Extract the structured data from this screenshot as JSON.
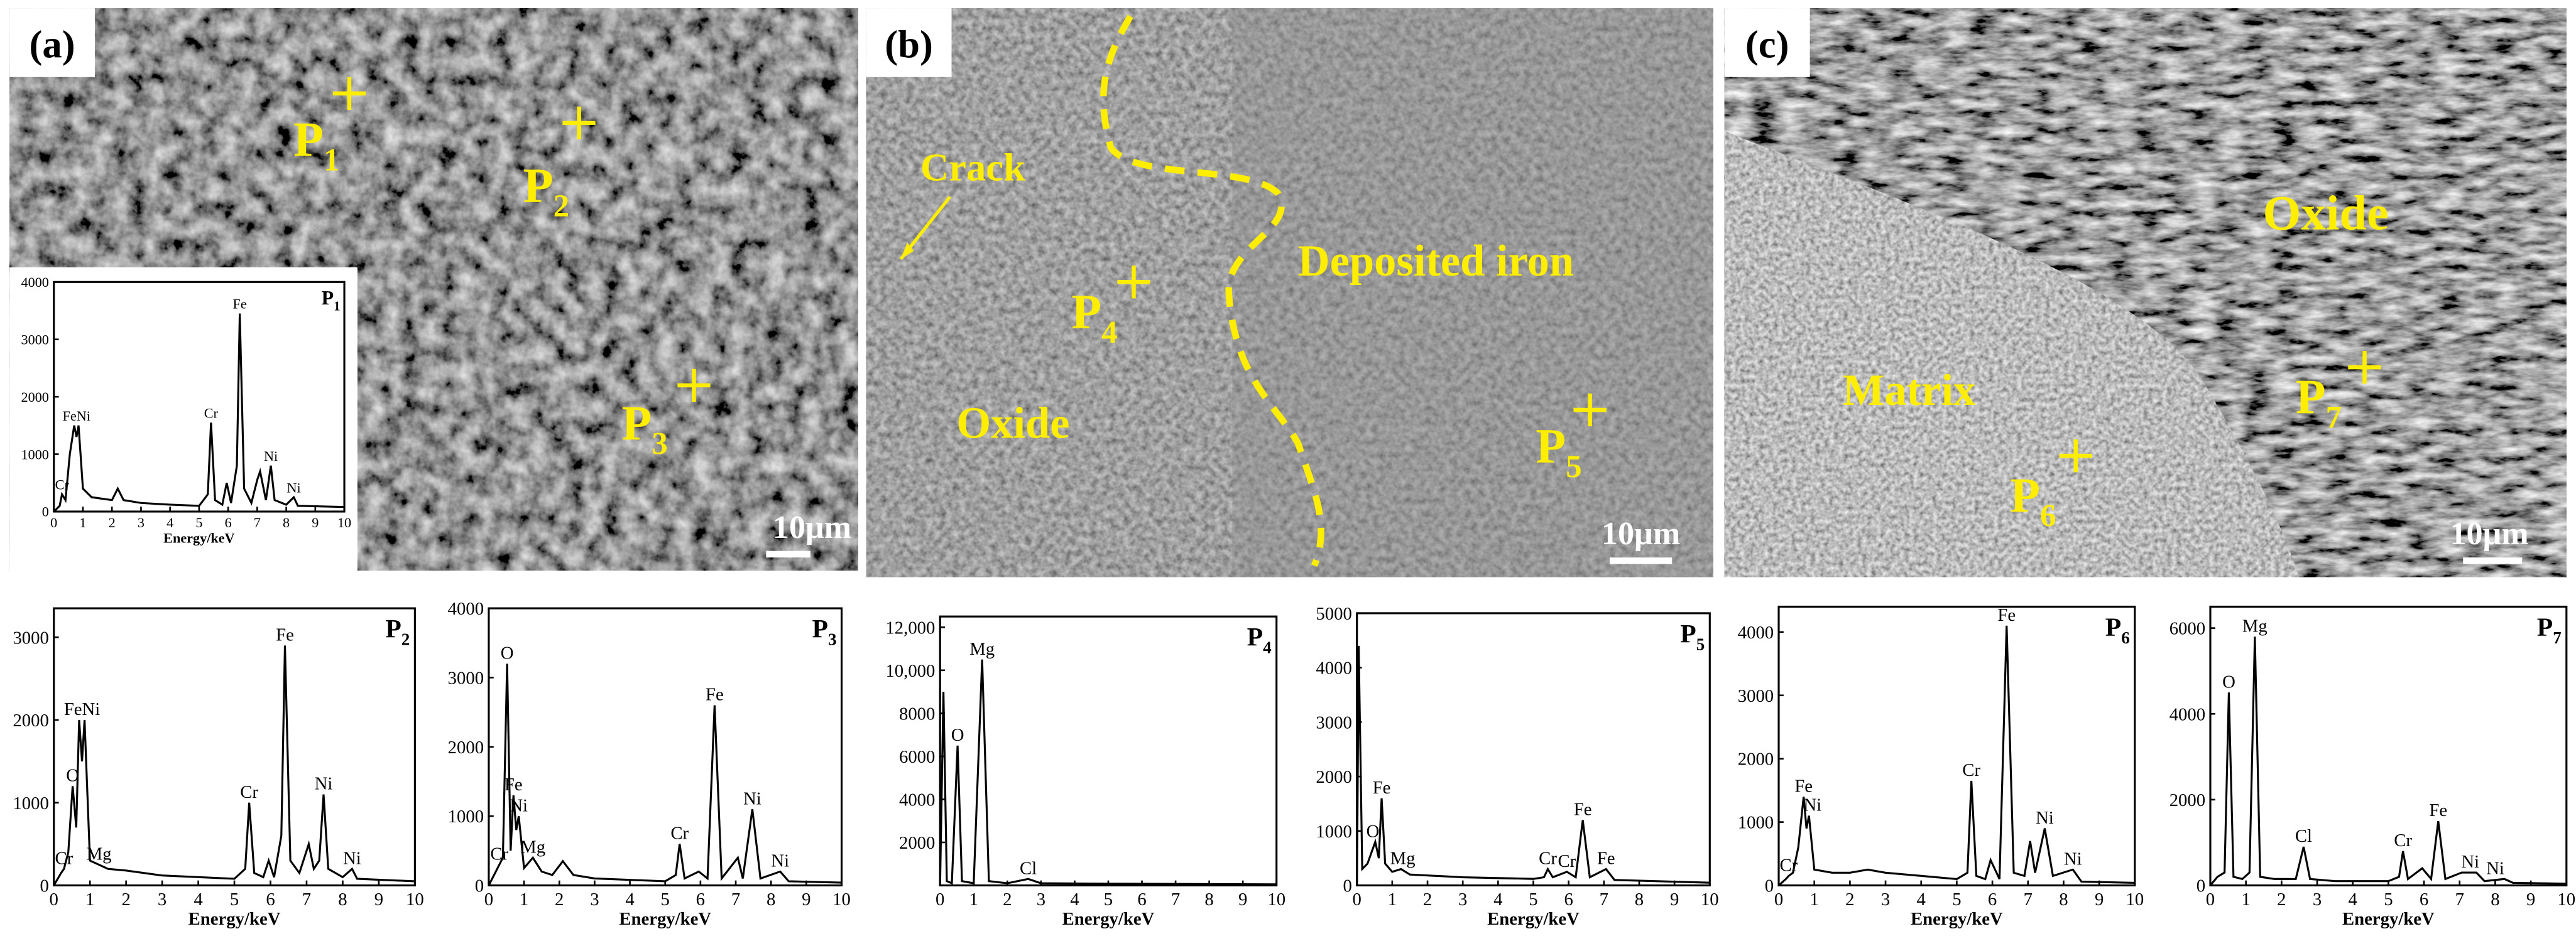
{
  "panels": [
    {
      "label": "(a)",
      "scale_bar": "10μm",
      "points": [
        {
          "name": "P",
          "sub": "1"
        },
        {
          "name": "P",
          "sub": "2"
        },
        {
          "name": "P",
          "sub": "3"
        }
      ],
      "labels": []
    },
    {
      "label": "(b)",
      "scale_bar": "10μm",
      "points": [
        {
          "name": "P",
          "sub": "4"
        },
        {
          "name": "P",
          "sub": "5"
        }
      ],
      "labels": [
        "Crack",
        "Deposited iron",
        "Oxide"
      ]
    },
    {
      "label": "(c)",
      "scale_bar": "10μm",
      "points": [
        {
          "name": "P",
          "sub": "6"
        },
        {
          "name": "P",
          "sub": "7"
        }
      ],
      "labels": [
        "Oxide",
        "Matrix"
      ]
    }
  ],
  "chart_data": [
    {
      "type": "line",
      "title": "P",
      "title_subscript": "1",
      "xlabel": "Energy/keV",
      "color": "#000000",
      "xlim": [
        0,
        10
      ],
      "xticks": [
        0,
        1,
        2,
        3,
        4,
        5,
        6,
        7,
        8,
        9,
        10
      ],
      "ylim": [
        0,
        4000
      ],
      "yticks": [
        0,
        1000,
        2000,
        3000,
        4000
      ],
      "x": [
        0,
        0.2,
        0.28,
        0.4,
        0.55,
        0.7,
        0.78,
        0.85,
        1.0,
        1.3,
        2.0,
        2.2,
        2.4,
        3,
        4,
        5,
        5.3,
        5.41,
        5.55,
        5.8,
        5.95,
        6.1,
        6.3,
        6.4,
        6.55,
        6.8,
        7.0,
        7.1,
        7.3,
        7.47,
        7.6,
        8.0,
        8.26,
        8.4,
        10
      ],
      "values": [
        0,
        100,
        300,
        200,
        1000,
        1500,
        1300,
        1500,
        400,
        250,
        200,
        400,
        200,
        150,
        120,
        100,
        300,
        1550,
        200,
        120,
        500,
        150,
        800,
        3450,
        400,
        150,
        550,
        700,
        200,
        800,
        200,
        120,
        250,
        100,
        80
      ],
      "annotations": [
        {
          "text": "Cr",
          "x": 0.28,
          "y": 300
        },
        {
          "text": "FeNi",
          "x": 0.78,
          "y": 1500
        },
        {
          "text": "Cr",
          "x": 5.41,
          "y": 1550
        },
        {
          "text": "Fe",
          "x": 6.4,
          "y": 3450
        },
        {
          "text": "Ni",
          "x": 7.47,
          "y": 800
        },
        {
          "text": "Ni",
          "x": 8.26,
          "y": 250
        }
      ]
    },
    {
      "type": "line",
      "title": "P",
      "title_subscript": "2",
      "xlabel": "Energy/keV",
      "color": "#000000",
      "xlim": [
        0,
        10
      ],
      "xticks": [
        0,
        1,
        2,
        3,
        4,
        5,
        6,
        7,
        8,
        9,
        10
      ],
      "ylim": [
        0,
        3350
      ],
      "yticks": [
        0,
        1000,
        2000,
        3000
      ],
      "x": [
        0,
        0.2,
        0.28,
        0.4,
        0.52,
        0.62,
        0.7,
        0.78,
        0.85,
        1.0,
        1.25,
        1.5,
        2,
        3,
        4,
        5,
        5.3,
        5.41,
        5.55,
        5.8,
        5.95,
        6.1,
        6.3,
        6.4,
        6.55,
        6.8,
        7.06,
        7.2,
        7.35,
        7.47,
        7.6,
        8.0,
        8.26,
        8.4,
        10
      ],
      "values": [
        0,
        150,
        200,
        400,
        1200,
        700,
        2000,
        1500,
        2000,
        300,
        250,
        200,
        180,
        120,
        100,
        80,
        200,
        1000,
        150,
        100,
        300,
        100,
        600,
        2900,
        300,
        150,
        500,
        200,
        300,
        1100,
        200,
        100,
        200,
        80,
        50
      ],
      "annotations": [
        {
          "text": "Cr",
          "x": 0.28,
          "y": 200
        },
        {
          "text": "O",
          "x": 0.52,
          "y": 1200
        },
        {
          "text": "FeNi",
          "x": 0.78,
          "y": 2000
        },
        {
          "text": "Mg",
          "x": 1.25,
          "y": 250
        },
        {
          "text": "Cr",
          "x": 5.41,
          "y": 1000
        },
        {
          "text": "Fe",
          "x": 6.4,
          "y": 2900
        },
        {
          "text": "Ni",
          "x": 7.47,
          "y": 1100
        },
        {
          "text": "Ni",
          "x": 8.26,
          "y": 200
        }
      ]
    },
    {
      "type": "line",
      "title": "P",
      "title_subscript": "3",
      "xlabel": "Energy/keV",
      "color": "#000000",
      "xlim": [
        0,
        10
      ],
      "xticks": [
        0,
        1,
        2,
        3,
        4,
        5,
        6,
        7,
        8,
        9,
        10
      ],
      "ylim": [
        0,
        4000
      ],
      "yticks": [
        0,
        1000,
        2000,
        3000,
        4000
      ],
      "x": [
        0,
        0.2,
        0.3,
        0.4,
        0.52,
        0.62,
        0.7,
        0.78,
        0.85,
        1.0,
        1.25,
        1.5,
        1.8,
        2.1,
        2.4,
        3,
        4,
        5,
        5.3,
        5.41,
        5.55,
        5.95,
        6.2,
        6.4,
        6.6,
        7.06,
        7.2,
        7.47,
        7.7,
        8.26,
        8.5,
        10
      ],
      "values": [
        0,
        200,
        300,
        400,
        3200,
        500,
        1300,
        800,
        1000,
        250,
        400,
        200,
        150,
        350,
        150,
        100,
        80,
        60,
        150,
        600,
        100,
        200,
        100,
        2600,
        100,
        400,
        100,
        1100,
        100,
        200,
        60,
        40
      ],
      "annotations": [
        {
          "text": "Cr",
          "x": 0.3,
          "y": 300
        },
        {
          "text": "O",
          "x": 0.52,
          "y": 3200
        },
        {
          "text": "Fe",
          "x": 0.7,
          "y": 1300
        },
        {
          "text": "Ni",
          "x": 0.85,
          "y": 1000
        },
        {
          "text": "Mg",
          "x": 1.25,
          "y": 400
        },
        {
          "text": "Cr",
          "x": 5.41,
          "y": 600
        },
        {
          "text": "Fe",
          "x": 6.4,
          "y": 2600
        },
        {
          "text": "Ni",
          "x": 7.47,
          "y": 1100
        },
        {
          "text": "Ni",
          "x": 8.26,
          "y": 200
        }
      ]
    },
    {
      "type": "line",
      "title": "P",
      "title_subscript": "4",
      "xlabel": "Energy/keV",
      "color": "#000000",
      "xlim": [
        0,
        10
      ],
      "xticks": [
        0,
        1,
        2,
        3,
        4,
        5,
        6,
        7,
        8,
        9,
        10
      ],
      "ylim": [
        0,
        12500
      ],
      "yticks": [
        2000,
        4000,
        6000,
        8000,
        {
          "value": 10000,
          "label": "10,000"
        },
        {
          "value": 12000,
          "label": "12,000"
        }
      ],
      "x": [
        0,
        0.1,
        0.2,
        0.35,
        0.52,
        0.65,
        1.0,
        1.25,
        1.45,
        2,
        2.62,
        3,
        5,
        10
      ],
      "values": [
        0,
        9000,
        200,
        100,
        6500,
        200,
        100,
        10500,
        200,
        100,
        300,
        100,
        80,
        50
      ],
      "annotations": [
        {
          "text": "O",
          "x": 0.52,
          "y": 6500
        },
        {
          "text": "Mg",
          "x": 1.25,
          "y": 10500
        },
        {
          "text": "Cl",
          "x": 2.62,
          "y": 300
        }
      ]
    },
    {
      "type": "line",
      "title": "P",
      "title_subscript": "5",
      "xlabel": "Energy/keV",
      "color": "#000000",
      "xlim": [
        0,
        10
      ],
      "xticks": [
        0,
        1,
        2,
        3,
        4,
        5,
        6,
        7,
        8,
        9,
        10
      ],
      "ylim": [
        0,
        5000
      ],
      "yticks": [
        0,
        1000,
        2000,
        3000,
        4000,
        5000
      ],
      "x": [
        0,
        0.05,
        0.15,
        0.3,
        0.52,
        0.62,
        0.7,
        0.8,
        1.0,
        1.25,
        1.5,
        3,
        5,
        5.3,
        5.41,
        5.55,
        5.95,
        6.2,
        6.4,
        6.6,
        7.06,
        7.3,
        10
      ],
      "values": [
        0,
        4400,
        300,
        400,
        800,
        500,
        1600,
        400,
        250,
        300,
        200,
        150,
        120,
        150,
        300,
        150,
        250,
        150,
        1200,
        150,
        300,
        100,
        50
      ],
      "annotations": [
        {
          "text": "O",
          "x": 0.45,
          "y": 800
        },
        {
          "text": "Fe",
          "x": 0.7,
          "y": 1600
        },
        {
          "text": "Mg",
          "x": 1.3,
          "y": 300
        },
        {
          "text": "Cr",
          "x": 5.41,
          "y": 300
        },
        {
          "text": "Cr",
          "x": 5.95,
          "y": 250
        },
        {
          "text": "Fe",
          "x": 6.4,
          "y": 1200
        },
        {
          "text": "Fe",
          "x": 7.06,
          "y": 300
        }
      ]
    },
    {
      "type": "line",
      "title": "P",
      "title_subscript": "6",
      "xlabel": "Energy/keV",
      "color": "#000000",
      "xlim": [
        0,
        10
      ],
      "xticks": [
        0,
        1,
        2,
        3,
        4,
        5,
        6,
        7,
        8,
        9,
        10
      ],
      "ylim": [
        0,
        4400
      ],
      "yticks": [
        0,
        1000,
        2000,
        3000,
        4000
      ],
      "x": [
        0,
        0.2,
        0.28,
        0.4,
        0.55,
        0.7,
        0.78,
        0.85,
        1.0,
        1.5,
        2,
        2.5,
        3,
        4,
        5,
        5.3,
        5.41,
        5.55,
        5.8,
        5.95,
        6.2,
        6.4,
        6.6,
        6.9,
        7.06,
        7.2,
        7.47,
        7.7,
        8.26,
        8.5,
        10
      ],
      "values": [
        0,
        100,
        150,
        200,
        600,
        1400,
        900,
        1100,
        250,
        200,
        200,
        250,
        200,
        150,
        100,
        200,
        1650,
        150,
        100,
        400,
        100,
        4100,
        200,
        150,
        700,
        200,
        900,
        150,
        250,
        60,
        40
      ],
      "annotations": [
        {
          "text": "Cr",
          "x": 0.28,
          "y": 150
        },
        {
          "text": "Fe",
          "x": 0.7,
          "y": 1400
        },
        {
          "text": "Ni",
          "x": 0.95,
          "y": 1100
        },
        {
          "text": "Cr",
          "x": 5.41,
          "y": 1650
        },
        {
          "text": "Fe",
          "x": 6.4,
          "y": 4100
        },
        {
          "text": "Ni",
          "x": 7.47,
          "y": 900
        },
        {
          "text": "Ni",
          "x": 8.26,
          "y": 250
        }
      ]
    },
    {
      "type": "line",
      "title": "P",
      "title_subscript": "7",
      "xlabel": "Energy/keV",
      "color": "#000000",
      "xlim": [
        0,
        10
      ],
      "xticks": [
        0,
        1,
        2,
        3,
        4,
        5,
        6,
        7,
        8,
        9,
        10
      ],
      "ylim": [
        0,
        6500
      ],
      "yticks": [
        0,
        2000,
        4000,
        6000
      ],
      "x": [
        0,
        0.2,
        0.4,
        0.52,
        0.65,
        0.9,
        1.1,
        1.25,
        1.4,
        1.8,
        2.4,
        2.62,
        2.8,
        3.5,
        5,
        5.3,
        5.41,
        5.55,
        5.95,
        6.2,
        6.4,
        6.6,
        7.06,
        7.47,
        7.7,
        8.26,
        8.5,
        10
      ],
      "values": [
        0,
        200,
        300,
        4500,
        200,
        150,
        300,
        5800,
        200,
        150,
        150,
        900,
        150,
        100,
        100,
        200,
        800,
        150,
        400,
        150,
        1500,
        150,
        300,
        300,
        100,
        150,
        60,
        40
      ],
      "annotations": [
        {
          "text": "O",
          "x": 0.52,
          "y": 4500
        },
        {
          "text": "Mg",
          "x": 1.25,
          "y": 5800
        },
        {
          "text": "Cl",
          "x": 2.62,
          "y": 900
        },
        {
          "text": "Cr",
          "x": 5.41,
          "y": 800
        },
        {
          "text": "Fe",
          "x": 6.4,
          "y": 1500
        },
        {
          "text": "Ni",
          "x": 7.3,
          "y": 300
        },
        {
          "text": "Ni",
          "x": 8.0,
          "y": 150
        }
      ]
    }
  ]
}
